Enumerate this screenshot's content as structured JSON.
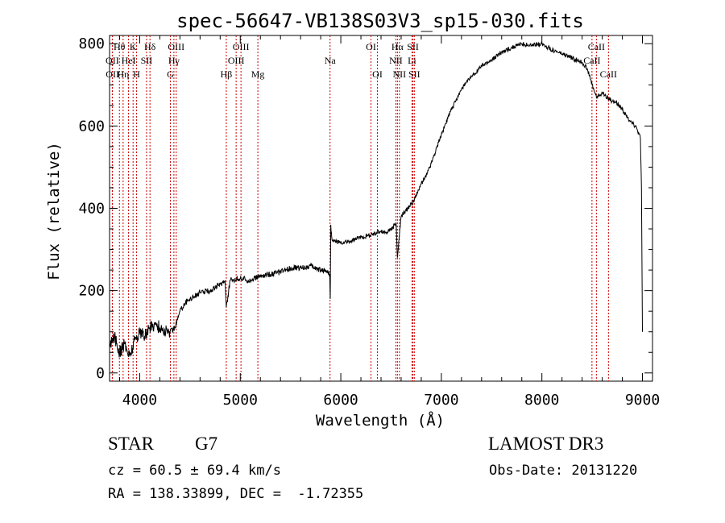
{
  "chart_data": {
    "type": "line",
    "title": "spec-56647-VB138S03V3_sp15-030.fits",
    "xlabel": "Wavelength (Å)",
    "ylabel": "Flux (relative)",
    "xlim": [
      3700,
      9100
    ],
    "ylim": [
      -20,
      820
    ],
    "xticks": [
      4000,
      5000,
      6000,
      7000,
      8000,
      9000
    ],
    "yticks": [
      0,
      200,
      400,
      600,
      800
    ],
    "series": [
      {
        "name": "spectrum",
        "color": "#000000",
        "x": [
          3700,
          3750,
          3800,
          3850,
          3900,
          3950,
          4000,
          4050,
          4100,
          4150,
          4200,
          4250,
          4300,
          4350,
          4400,
          4450,
          4500,
          4600,
          4700,
          4800,
          4850,
          4861,
          4900,
          5000,
          5100,
          5200,
          5300,
          5400,
          5500,
          5600,
          5700,
          5800,
          5850,
          5890,
          5895,
          5900,
          5910,
          5920,
          5950,
          6000,
          6100,
          6200,
          6300,
          6400,
          6450,
          6500,
          6550,
          6563,
          6600,
          6650,
          6700,
          6750,
          6800,
          6850,
          6900,
          7000,
          7100,
          7200,
          7300,
          7400,
          7500,
          7600,
          7700,
          7800,
          7900,
          8000,
          8100,
          8200,
          8300,
          8400,
          8450,
          8500,
          8542,
          8600,
          8650,
          8700,
          8750,
          8800,
          8850,
          8900,
          8950,
          8980,
          8990,
          9000
        ],
        "y": [
          60,
          90,
          50,
          70,
          40,
          80,
          100,
          90,
          110,
          120,
          110,
          100,
          100,
          110,
          150,
          170,
          180,
          195,
          200,
          215,
          225,
          160,
          225,
          230,
          225,
          235,
          240,
          245,
          255,
          255,
          260,
          250,
          250,
          240,
          180,
          360,
          330,
          320,
          320,
          315,
          320,
          330,
          335,
          345,
          340,
          350,
          365,
          280,
          380,
          395,
          410,
          430,
          460,
          480,
          510,
          580,
          640,
          690,
          720,
          745,
          760,
          780,
          790,
          800,
          795,
          800,
          785,
          775,
          765,
          755,
          740,
          700,
          670,
          680,
          670,
          660,
          655,
          640,
          620,
          610,
          590,
          570,
          450,
          100
        ]
      }
    ],
    "lines": [
      {
        "label": "Hθ",
        "wavelength": 3798,
        "row": 0
      },
      {
        "label": "OII",
        "wavelength": 3727,
        "row": 1
      },
      {
        "label": "OII",
        "wavelength": 3729,
        "row": 2
      },
      {
        "label": "K",
        "wavelength": 3934,
        "row": 0
      },
      {
        "label": "H",
        "wavelength": 3969,
        "row": 2
      },
      {
        "label": "Hη",
        "wavelength": 3835,
        "row": 2
      },
      {
        "label": "HeI",
        "wavelength": 3889,
        "row": 1
      },
      {
        "label": "SII",
        "wavelength": 4068,
        "row": 1
      },
      {
        "label": "Hδ",
        "wavelength": 4102,
        "row": 0
      },
      {
        "label": "OIII",
        "wavelength": 4363,
        "row": 0
      },
      {
        "label": "Hγ",
        "wavelength": 4340,
        "row": 1
      },
      {
        "label": "G",
        "wavelength": 4305,
        "row": 2
      },
      {
        "label": "Hβ",
        "wavelength": 4861,
        "row": 2
      },
      {
        "label": "OIII",
        "wavelength": 5007,
        "row": 0
      },
      {
        "label": "OIII",
        "wavelength": 4959,
        "row": 1
      },
      {
        "label": "Mg",
        "wavelength": 5175,
        "row": 2
      },
      {
        "label": "Na",
        "wavelength": 5893,
        "row": 1
      },
      {
        "label": "OI",
        "wavelength": 6300,
        "row": 0
      },
      {
        "label": "OI",
        "wavelength": 6364,
        "row": 2
      },
      {
        "label": "Hα",
        "wavelength": 6563,
        "row": 0
      },
      {
        "label": "NII",
        "wavelength": 6548,
        "row": 1
      },
      {
        "label": "NII",
        "wavelength": 6583,
        "row": 2
      },
      {
        "label": "SII",
        "wavelength": 6717,
        "row": 0
      },
      {
        "label": "Li",
        "wavelength": 6708,
        "row": 1
      },
      {
        "label": "SII",
        "wavelength": 6731,
        "row": 2
      },
      {
        "label": "CaII",
        "wavelength": 8542,
        "row": 0
      },
      {
        "label": "CaII",
        "wavelength": 8498,
        "row": 1
      },
      {
        "label": "CaII",
        "wavelength": 8662,
        "row": 2
      }
    ]
  },
  "footer": {
    "object_class": "STAR",
    "subclass": "G7",
    "survey": "LAMOST DR3",
    "cz": "cz = 60.5 ± 69.4 km/s",
    "obs_date": "Obs-Date: 20131220",
    "coords": "RA = 138.33899, DEC =  -1.72355"
  },
  "colors": {
    "spectrum": "#000000",
    "line_markers": "#cc0000",
    "axes": "#000000"
  }
}
